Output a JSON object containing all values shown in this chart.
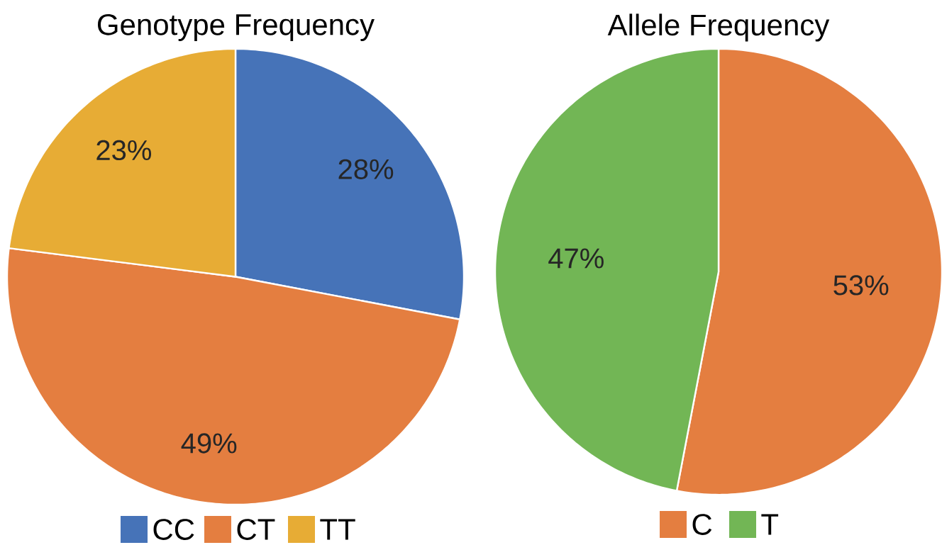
{
  "chart_data": [
    {
      "type": "pie",
      "title": "Genotype Frequency",
      "categories": [
        "CC",
        "CT",
        "TT"
      ],
      "values": [
        28,
        49,
        23
      ],
      "colors": [
        "#4673b8",
        "#e47e40",
        "#e7ac35"
      ],
      "value_labels": [
        "28%",
        "49%",
        "23%"
      ],
      "legend": "bottom"
    },
    {
      "type": "pie",
      "title": "Allele Frequency",
      "categories": [
        "C",
        "T"
      ],
      "values": [
        53,
        47
      ],
      "colors": [
        "#e47e40",
        "#72b655"
      ],
      "value_labels": [
        "53%",
        "47%"
      ],
      "legend": "bottom"
    }
  ]
}
